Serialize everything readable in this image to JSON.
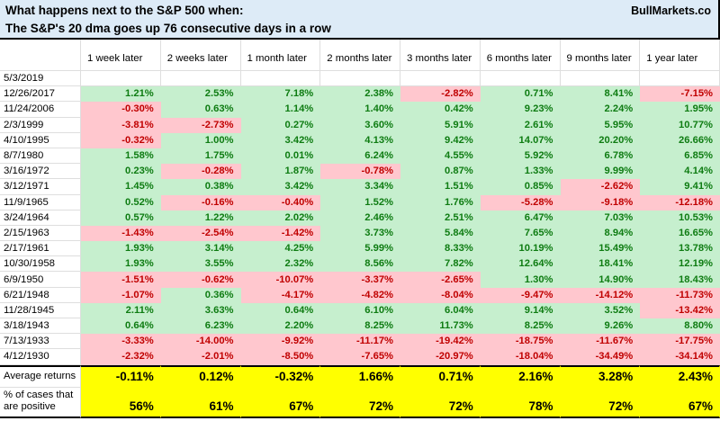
{
  "title": {
    "line1": "What happens next to the S&P 500 when:",
    "line2": "The S&P's 20 dma goes up 76 consecutive days in a row",
    "brand": "BullMarkets.co"
  },
  "colors": {
    "title_bg": "#DDEBF7",
    "positive_bg": "#C6EFCE",
    "positive_text": "#0E7C12",
    "negative_bg": "#FFC7CE",
    "negative_text": "#C00000",
    "summary_bg": "#FFFF00",
    "gridline": "#DEDEDE"
  },
  "chart_data": {
    "type": "table",
    "columns": [
      "1 week later",
      "2 weeks later",
      "1 month later",
      "2 months later",
      "3 months later",
      "6 months later",
      "9 months later",
      "1 year later"
    ],
    "rows": [
      {
        "date": "5/3/2019",
        "values": [
          "",
          "",
          "",
          "",
          "",
          "",
          "",
          ""
        ]
      },
      {
        "date": "12/26/2017",
        "values": [
          "1.21%",
          "2.53%",
          "7.18%",
          "2.38%",
          "-2.82%",
          "0.71%",
          "8.41%",
          "-7.15%"
        ]
      },
      {
        "date": "11/24/2006",
        "values": [
          "-0.30%",
          "0.63%",
          "1.14%",
          "1.40%",
          "0.42%",
          "9.23%",
          "2.24%",
          "1.95%"
        ]
      },
      {
        "date": "2/3/1999",
        "values": [
          "-3.81%",
          "-2.73%",
          "0.27%",
          "3.60%",
          "5.91%",
          "2.61%",
          "5.95%",
          "10.77%"
        ]
      },
      {
        "date": "4/10/1995",
        "values": [
          "-0.32%",
          "1.00%",
          "3.42%",
          "4.13%",
          "9.42%",
          "14.07%",
          "20.20%",
          "26.66%"
        ]
      },
      {
        "date": "8/7/1980",
        "values": [
          "1.58%",
          "1.75%",
          "0.01%",
          "6.24%",
          "4.55%",
          "5.92%",
          "6.78%",
          "6.85%"
        ]
      },
      {
        "date": "3/16/1972",
        "values": [
          "0.23%",
          "-0.28%",
          "1.87%",
          "-0.78%",
          "0.87%",
          "1.33%",
          "9.99%",
          "4.14%"
        ]
      },
      {
        "date": "3/12/1971",
        "values": [
          "1.45%",
          "0.38%",
          "3.42%",
          "3.34%",
          "1.51%",
          "0.85%",
          "-2.62%",
          "9.41%"
        ]
      },
      {
        "date": "11/9/1965",
        "values": [
          "0.52%",
          "-0.16%",
          "-0.40%",
          "1.52%",
          "1.76%",
          "-5.28%",
          "-9.18%",
          "-12.18%"
        ]
      },
      {
        "date": "3/24/1964",
        "values": [
          "0.57%",
          "1.22%",
          "2.02%",
          "2.46%",
          "2.51%",
          "6.47%",
          "7.03%",
          "10.53%"
        ]
      },
      {
        "date": "2/15/1963",
        "values": [
          "-1.43%",
          "-2.54%",
          "-1.42%",
          "3.73%",
          "5.84%",
          "7.65%",
          "8.94%",
          "16.65%"
        ]
      },
      {
        "date": "2/17/1961",
        "values": [
          "1.93%",
          "3.14%",
          "4.25%",
          "5.99%",
          "8.33%",
          "10.19%",
          "15.49%",
          "13.78%"
        ]
      },
      {
        "date": "10/30/1958",
        "values": [
          "1.93%",
          "3.55%",
          "2.32%",
          "8.56%",
          "7.82%",
          "12.64%",
          "18.41%",
          "12.19%"
        ]
      },
      {
        "date": "6/9/1950",
        "values": [
          "-1.51%",
          "-0.62%",
          "-10.07%",
          "-3.37%",
          "-2.65%",
          "1.30%",
          "14.90%",
          "18.43%"
        ]
      },
      {
        "date": "6/21/1948",
        "values": [
          "-1.07%",
          "0.36%",
          "-4.17%",
          "-4.82%",
          "-8.04%",
          "-9.47%",
          "-14.12%",
          "-11.73%"
        ]
      },
      {
        "date": "11/28/1945",
        "values": [
          "2.11%",
          "3.63%",
          "0.64%",
          "6.10%",
          "6.04%",
          "9.14%",
          "3.52%",
          "-13.42%"
        ]
      },
      {
        "date": "3/18/1943",
        "values": [
          "0.64%",
          "6.23%",
          "2.20%",
          "8.25%",
          "11.73%",
          "8.25%",
          "9.26%",
          "8.80%"
        ]
      },
      {
        "date": "7/13/1933",
        "values": [
          "-3.33%",
          "-14.00%",
          "-9.92%",
          "-11.17%",
          "-19.42%",
          "-18.75%",
          "-11.67%",
          "-17.75%"
        ]
      },
      {
        "date": "4/12/1930",
        "values": [
          "-2.32%",
          "-2.01%",
          "-8.50%",
          "-7.65%",
          "-20.97%",
          "-18.04%",
          "-34.49%",
          "-34.14%"
        ]
      }
    ],
    "summary": [
      {
        "label": "Average returns",
        "values": [
          "-0.11%",
          "0.12%",
          "-0.32%",
          "1.66%",
          "0.71%",
          "2.16%",
          "3.28%",
          "2.43%"
        ]
      },
      {
        "label": "% of cases that are positive",
        "values": [
          "56%",
          "61%",
          "67%",
          "72%",
          "72%",
          "78%",
          "72%",
          "67%"
        ]
      }
    ]
  }
}
